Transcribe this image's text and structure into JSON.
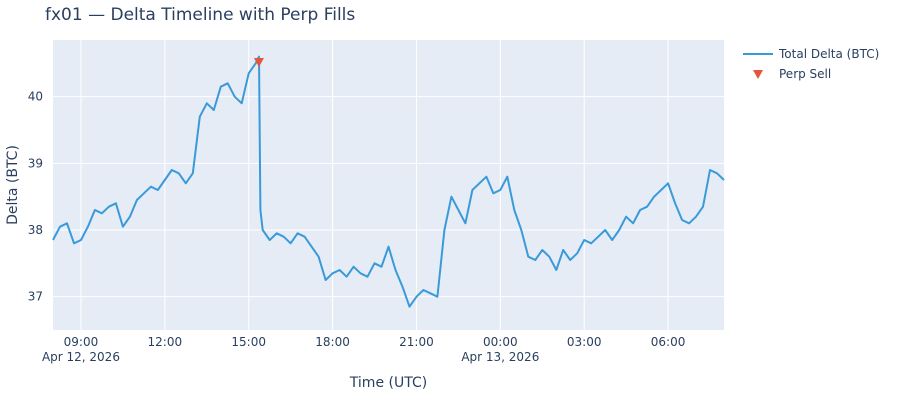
{
  "chart_data": {
    "type": "line",
    "title": "fx01 — Delta Timeline with Perp Fills",
    "xlabel": "Time (UTC)",
    "ylabel": "Delta (BTC)",
    "xlim": [
      "2026-04-12 08:00",
      "2026-04-13 08:00"
    ],
    "ylim": [
      36.5,
      40.85
    ],
    "grid": true,
    "legend_position": "top-right",
    "x_ticks": [
      {
        "time": "2026-04-12 09:00",
        "label": "09:00",
        "sublabel": "Apr 12, 2026"
      },
      {
        "time": "2026-04-12 12:00",
        "label": "12:00",
        "sublabel": ""
      },
      {
        "time": "2026-04-12 15:00",
        "label": "15:00",
        "sublabel": ""
      },
      {
        "time": "2026-04-12 18:00",
        "label": "18:00",
        "sublabel": ""
      },
      {
        "time": "2026-04-12 21:00",
        "label": "21:00",
        "sublabel": ""
      },
      {
        "time": "2026-04-13 00:00",
        "label": "00:00",
        "sublabel": "Apr 13, 2026"
      },
      {
        "time": "2026-04-13 03:00",
        "label": "03:00",
        "sublabel": ""
      },
      {
        "time": "2026-04-13 06:00",
        "label": "06:00",
        "sublabel": ""
      }
    ],
    "y_ticks": [
      37,
      38,
      39,
      40
    ],
    "series": [
      {
        "name": "Total Delta (BTC)",
        "mode": "line",
        "color": "#3a9ad9",
        "x": [
          "2026-04-12 08:00",
          "2026-04-12 08:15",
          "2026-04-12 08:30",
          "2026-04-12 08:45",
          "2026-04-12 09:00",
          "2026-04-12 09:15",
          "2026-04-12 09:30",
          "2026-04-12 09:45",
          "2026-04-12 10:00",
          "2026-04-12 10:15",
          "2026-04-12 10:30",
          "2026-04-12 10:45",
          "2026-04-12 11:00",
          "2026-04-12 11:15",
          "2026-04-12 11:30",
          "2026-04-12 11:45",
          "2026-04-12 12:00",
          "2026-04-12 12:15",
          "2026-04-12 12:30",
          "2026-04-12 12:45",
          "2026-04-12 13:00",
          "2026-04-12 13:15",
          "2026-04-12 13:30",
          "2026-04-12 13:45",
          "2026-04-12 14:00",
          "2026-04-12 14:15",
          "2026-04-12 14:30",
          "2026-04-12 14:45",
          "2026-04-12 15:00",
          "2026-04-12 15:15",
          "2026-04-12 15:22",
          "2026-04-12 15:25",
          "2026-04-12 15:30",
          "2026-04-12 15:45",
          "2026-04-12 16:00",
          "2026-04-12 16:15",
          "2026-04-12 16:30",
          "2026-04-12 16:45",
          "2026-04-12 17:00",
          "2026-04-12 17:15",
          "2026-04-12 17:30",
          "2026-04-12 17:45",
          "2026-04-12 18:00",
          "2026-04-12 18:15",
          "2026-04-12 18:30",
          "2026-04-12 18:45",
          "2026-04-12 19:00",
          "2026-04-12 19:15",
          "2026-04-12 19:30",
          "2026-04-12 19:45",
          "2026-04-12 20:00",
          "2026-04-12 20:15",
          "2026-04-12 20:30",
          "2026-04-12 20:45",
          "2026-04-12 21:00",
          "2026-04-12 21:15",
          "2026-04-12 21:30",
          "2026-04-12 21:45",
          "2026-04-12 22:00",
          "2026-04-12 22:15",
          "2026-04-12 22:30",
          "2026-04-12 22:45",
          "2026-04-12 23:00",
          "2026-04-12 23:15",
          "2026-04-12 23:30",
          "2026-04-12 23:45",
          "2026-04-13 00:00",
          "2026-04-13 00:15",
          "2026-04-13 00:30",
          "2026-04-13 00:45",
          "2026-04-13 01:00",
          "2026-04-13 01:15",
          "2026-04-13 01:30",
          "2026-04-13 01:45",
          "2026-04-13 02:00",
          "2026-04-13 02:15",
          "2026-04-13 02:30",
          "2026-04-13 02:45",
          "2026-04-13 03:00",
          "2026-04-13 03:15",
          "2026-04-13 03:30",
          "2026-04-13 03:45",
          "2026-04-13 04:00",
          "2026-04-13 04:15",
          "2026-04-13 04:30",
          "2026-04-13 04:45",
          "2026-04-13 05:00",
          "2026-04-13 05:15",
          "2026-04-13 05:30",
          "2026-04-13 05:45",
          "2026-04-13 06:00",
          "2026-04-13 06:15",
          "2026-04-13 06:30",
          "2026-04-13 06:45",
          "2026-04-13 07:00",
          "2026-04-13 07:15",
          "2026-04-13 07:30",
          "2026-04-13 07:45",
          "2026-04-13 08:00"
        ],
        "y": [
          37.85,
          38.05,
          38.1,
          37.8,
          37.85,
          38.05,
          38.3,
          38.25,
          38.35,
          38.4,
          38.05,
          38.2,
          38.45,
          38.55,
          38.65,
          38.6,
          38.75,
          38.9,
          38.85,
          38.7,
          38.85,
          39.7,
          39.9,
          39.8,
          40.15,
          40.2,
          40.0,
          39.9,
          40.35,
          40.5,
          40.6,
          38.3,
          38.0,
          37.85,
          37.95,
          37.9,
          37.8,
          37.95,
          37.9,
          37.75,
          37.6,
          37.25,
          37.35,
          37.4,
          37.3,
          37.45,
          37.35,
          37.3,
          37.5,
          37.45,
          37.75,
          37.4,
          37.15,
          36.85,
          37.0,
          37.1,
          37.05,
          37.0,
          38.0,
          38.5,
          38.3,
          38.1,
          38.6,
          38.7,
          38.8,
          38.55,
          38.6,
          38.8,
          38.3,
          38.0,
          37.6,
          37.55,
          37.7,
          37.6,
          37.4,
          37.7,
          37.55,
          37.65,
          37.85,
          37.8,
          37.9,
          38.0,
          37.85,
          38.0,
          38.2,
          38.1,
          38.3,
          38.35,
          38.5,
          38.6,
          38.7,
          38.4,
          38.15,
          38.1,
          38.2,
          38.35,
          38.9,
          38.85,
          38.75
        ]
      },
      {
        "name": "Perp Sell",
        "mode": "markers",
        "marker": "triangle-down",
        "color": "#e5553b",
        "x": [
          "2026-04-12 15:22"
        ],
        "y": [
          40.52
        ]
      }
    ]
  }
}
